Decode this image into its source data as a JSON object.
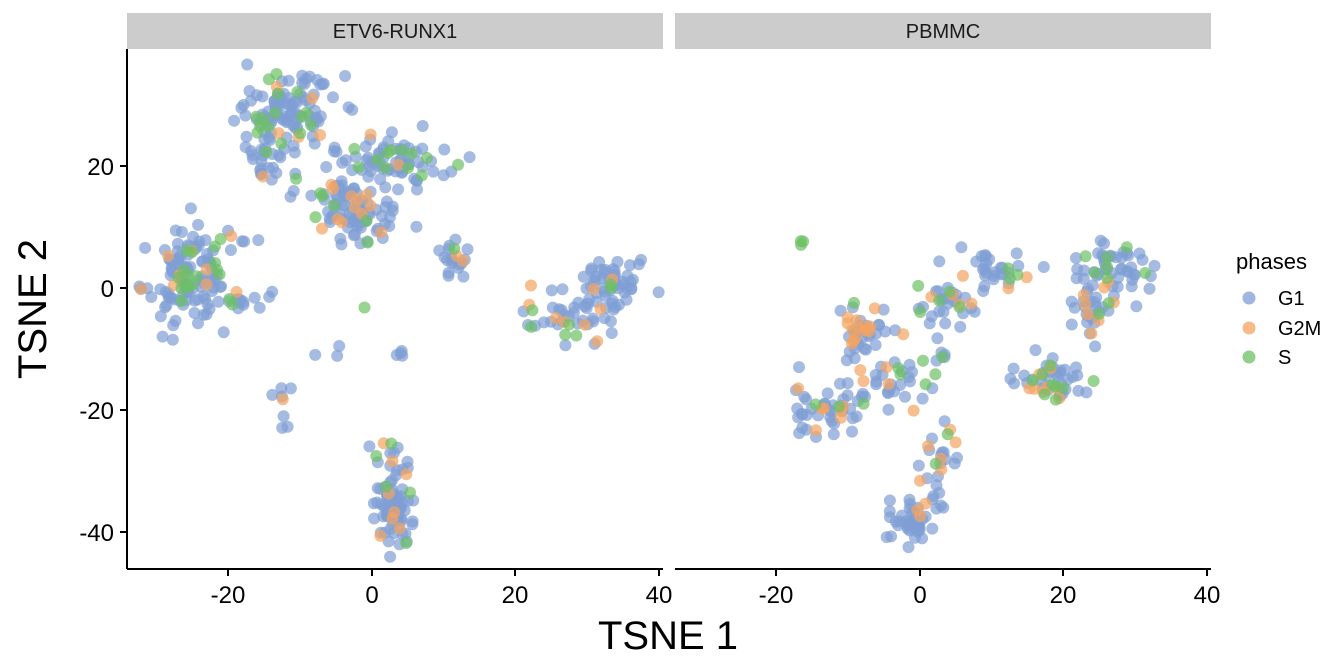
{
  "chart_data": {
    "type": "scatter",
    "xlabel": "TSNE 1",
    "ylabel": "TSNE 2",
    "xlim": [
      -34,
      40
    ],
    "ylim": [
      -46,
      39
    ],
    "x_ticks": [
      -20,
      0,
      20,
      40
    ],
    "y_ticks": [
      -40,
      -20,
      0,
      20
    ],
    "x_tick_labels": [
      "-20",
      "0",
      "20",
      "40"
    ],
    "y_tick_labels": [
      "-40",
      "-20",
      "0",
      "20"
    ],
    "grid": false,
    "legend": {
      "title": "phases",
      "position": "right",
      "entries": [
        {
          "label": "G1",
          "color": "#7f9ed4"
        },
        {
          "label": "G2M",
          "color": "#f4a461"
        },
        {
          "label": "S",
          "color": "#6cc064"
        }
      ]
    },
    "panels": [
      {
        "name": "ETV6-RUNX1",
        "clusters": [
          {
            "cx": -12,
            "cy": 29,
            "sx": 3.5,
            "sy": 3,
            "n": 110,
            "g2m": 0.05,
            "s": 0.12
          },
          {
            "cx": -15,
            "cy": 22,
            "sx": 1.5,
            "sy": 3,
            "n": 25,
            "g2m": 0.05,
            "s": 0.1
          },
          {
            "cx": 3,
            "cy": 21,
            "sx": 4,
            "sy": 2,
            "n": 80,
            "g2m": 0.08,
            "s": 0.1
          },
          {
            "cx": -6,
            "cy": 15,
            "sx": 2.5,
            "sy": 2,
            "n": 35,
            "g2m": 0.2,
            "s": 0.1
          },
          {
            "cx": -2,
            "cy": 11,
            "sx": 2.5,
            "sy": 2.5,
            "n": 60,
            "g2m": 0.08,
            "s": 0.12
          },
          {
            "cx": -26,
            "cy": 2,
            "sx": 3,
            "sy": 3.5,
            "n": 130,
            "g2m": 0.04,
            "s": 0.1
          },
          {
            "cx": -19,
            "cy": -2,
            "sx": 2,
            "sy": 1.2,
            "n": 15,
            "g2m": 0.05,
            "s": 0.1
          },
          {
            "cx": -20,
            "cy": 8,
            "sx": 2,
            "sy": 1,
            "n": 8,
            "g2m": 0.1,
            "s": 0.4
          },
          {
            "cx": 11,
            "cy": 5,
            "sx": 1.5,
            "sy": 1.5,
            "n": 20,
            "g2m": 0.1,
            "s": 0.1
          },
          {
            "cx": 33,
            "cy": 0,
            "sx": 2.5,
            "sy": 2.5,
            "n": 60,
            "g2m": 0.05,
            "s": 0.05
          },
          {
            "cx": 27,
            "cy": -5,
            "sx": 3,
            "sy": 1.5,
            "n": 30,
            "g2m": 0.1,
            "s": 0.2
          },
          {
            "cx": 24,
            "cy": -1,
            "sx": 2,
            "sy": 1.5,
            "n": 8,
            "g2m": 0.4,
            "s": 0.1
          },
          {
            "cx": 3,
            "cy": -37,
            "sx": 1.5,
            "sy": 2.5,
            "n": 70,
            "g2m": 0.03,
            "s": 0.03
          },
          {
            "cx": 3,
            "cy": -29,
            "sx": 1.5,
            "sy": 2.5,
            "n": 20,
            "g2m": 0.15,
            "s": 0.15
          },
          {
            "cx": -13,
            "cy": -18,
            "sx": 0.8,
            "sy": 1.5,
            "n": 6,
            "g2m": 0.15,
            "s": 0
          },
          {
            "cx": 4,
            "cy": -11,
            "sx": 0.6,
            "sy": 0.6,
            "n": 4,
            "g2m": 0,
            "s": 0
          },
          {
            "cx": -12,
            "cy": -23,
            "sx": 0.3,
            "sy": 0.3,
            "n": 2,
            "g2m": 0,
            "s": 0
          },
          {
            "cx": -1,
            "cy": -3,
            "sx": 0.2,
            "sy": 0.2,
            "n": 1,
            "g2m": 0,
            "s": 1
          },
          {
            "cx": -6,
            "cy": -11,
            "sx": 1.5,
            "sy": 1.5,
            "n": 3,
            "g2m": 0,
            "s": 0
          }
        ]
      },
      {
        "name": "PBMMC",
        "clusters": [
          {
            "cx": -16.5,
            "cy": 7.3,
            "sx": 0.3,
            "sy": 0.3,
            "n": 3,
            "g2m": 0,
            "s": 1
          },
          {
            "cx": -8,
            "cy": -7,
            "sx": 2,
            "sy": 2,
            "n": 40,
            "g2m": 0.3,
            "s": 0.05
          },
          {
            "cx": -13,
            "cy": -20,
            "sx": 2.5,
            "sy": 2,
            "n": 45,
            "g2m": 0.1,
            "s": 0.1
          },
          {
            "cx": -5,
            "cy": -15,
            "sx": 2.5,
            "sy": 3,
            "n": 35,
            "g2m": 0.1,
            "s": 0.1
          },
          {
            "cx": 4,
            "cy": -3,
            "sx": 3,
            "sy": 2,
            "n": 35,
            "g2m": 0.1,
            "s": 0.1
          },
          {
            "cx": 11,
            "cy": 3,
            "sx": 2.5,
            "sy": 1.5,
            "n": 30,
            "g2m": 0.1,
            "s": 0.05
          },
          {
            "cx": 27,
            "cy": 3,
            "sx": 3,
            "sy": 2.5,
            "n": 55,
            "g2m": 0.08,
            "s": 0.1
          },
          {
            "cx": 24,
            "cy": -4,
            "sx": 2,
            "sy": 2.5,
            "n": 30,
            "g2m": 0.1,
            "s": 0.05
          },
          {
            "cx": 19,
            "cy": -15,
            "sx": 2.5,
            "sy": 2,
            "n": 50,
            "g2m": 0.15,
            "s": 0.15
          },
          {
            "cx": 3,
            "cy": -27,
            "sx": 1.2,
            "sy": 3.5,
            "n": 25,
            "g2m": 0.25,
            "s": 0.05
          },
          {
            "cx": -1,
            "cy": -38,
            "sx": 1.5,
            "sy": 2,
            "n": 45,
            "g2m": 0.05,
            "s": 0.03
          },
          {
            "cx": 3,
            "cy": -11,
            "sx": 0.6,
            "sy": 0.6,
            "n": 5,
            "g2m": 0,
            "s": 0.2
          },
          {
            "cx": 0,
            "cy": -16,
            "sx": 1.5,
            "sy": 1.5,
            "n": 4,
            "g2m": 0,
            "s": 0.3
          }
        ]
      }
    ]
  }
}
